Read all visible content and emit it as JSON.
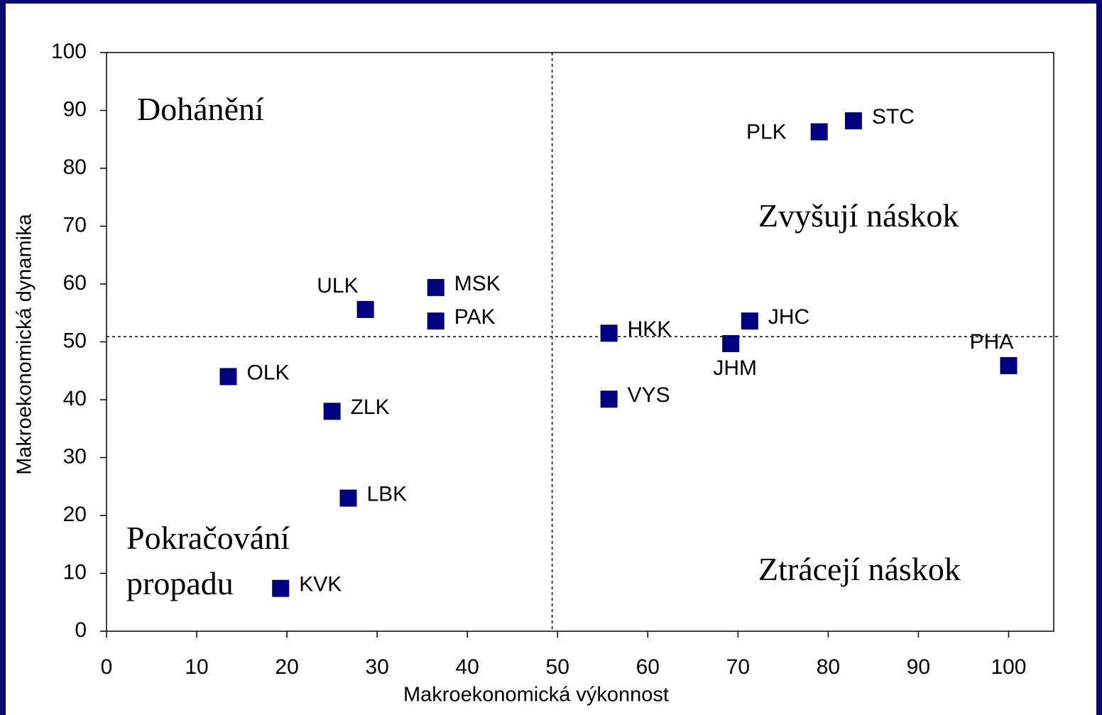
{
  "chart_data": {
    "type": "scatter",
    "xlabel": "Makroekonomická výkonnost",
    "ylabel": "Makroekonomická dynamika",
    "xlim": [
      0,
      105
    ],
    "ylim": [
      0,
      100
    ],
    "xticks": [
      0,
      10,
      20,
      30,
      40,
      50,
      60,
      70,
      80,
      90,
      100
    ],
    "yticks": [
      0,
      10,
      20,
      30,
      40,
      50,
      60,
      70,
      80,
      90,
      100
    ],
    "color": "#000080",
    "points": [
      "OLK",
      "ZLK",
      "LBK",
      "KVK",
      "ULK",
      "MSK",
      "PAK",
      "HKK",
      "VYS",
      "JHM",
      "JHC",
      "PHA",
      "PLK",
      "STC"
    ],
    "x": [
      13.5,
      25,
      26.8,
      19.3,
      28.7,
      36.5,
      36.5,
      55.7,
      55.7,
      69.2,
      71.3,
      100,
      79,
      82.8
    ],
    "values": [
      44,
      38,
      23,
      7.4,
      55.6,
      59.4,
      53.6,
      51.5,
      40.1,
      49.7,
      53.6,
      45.9,
      86.3,
      88.2
    ],
    "vline": 49.4,
    "hline": 50.9,
    "annotations": [
      {
        "lines": [
          "Dohánění"
        ]
      },
      {
        "lines": [
          "Zvyšují náskok"
        ]
      },
      {
        "lines": [
          "Pokračování",
          "propadu"
        ]
      },
      {
        "lines": [
          "Ztrácejí náskok"
        ]
      }
    ]
  }
}
